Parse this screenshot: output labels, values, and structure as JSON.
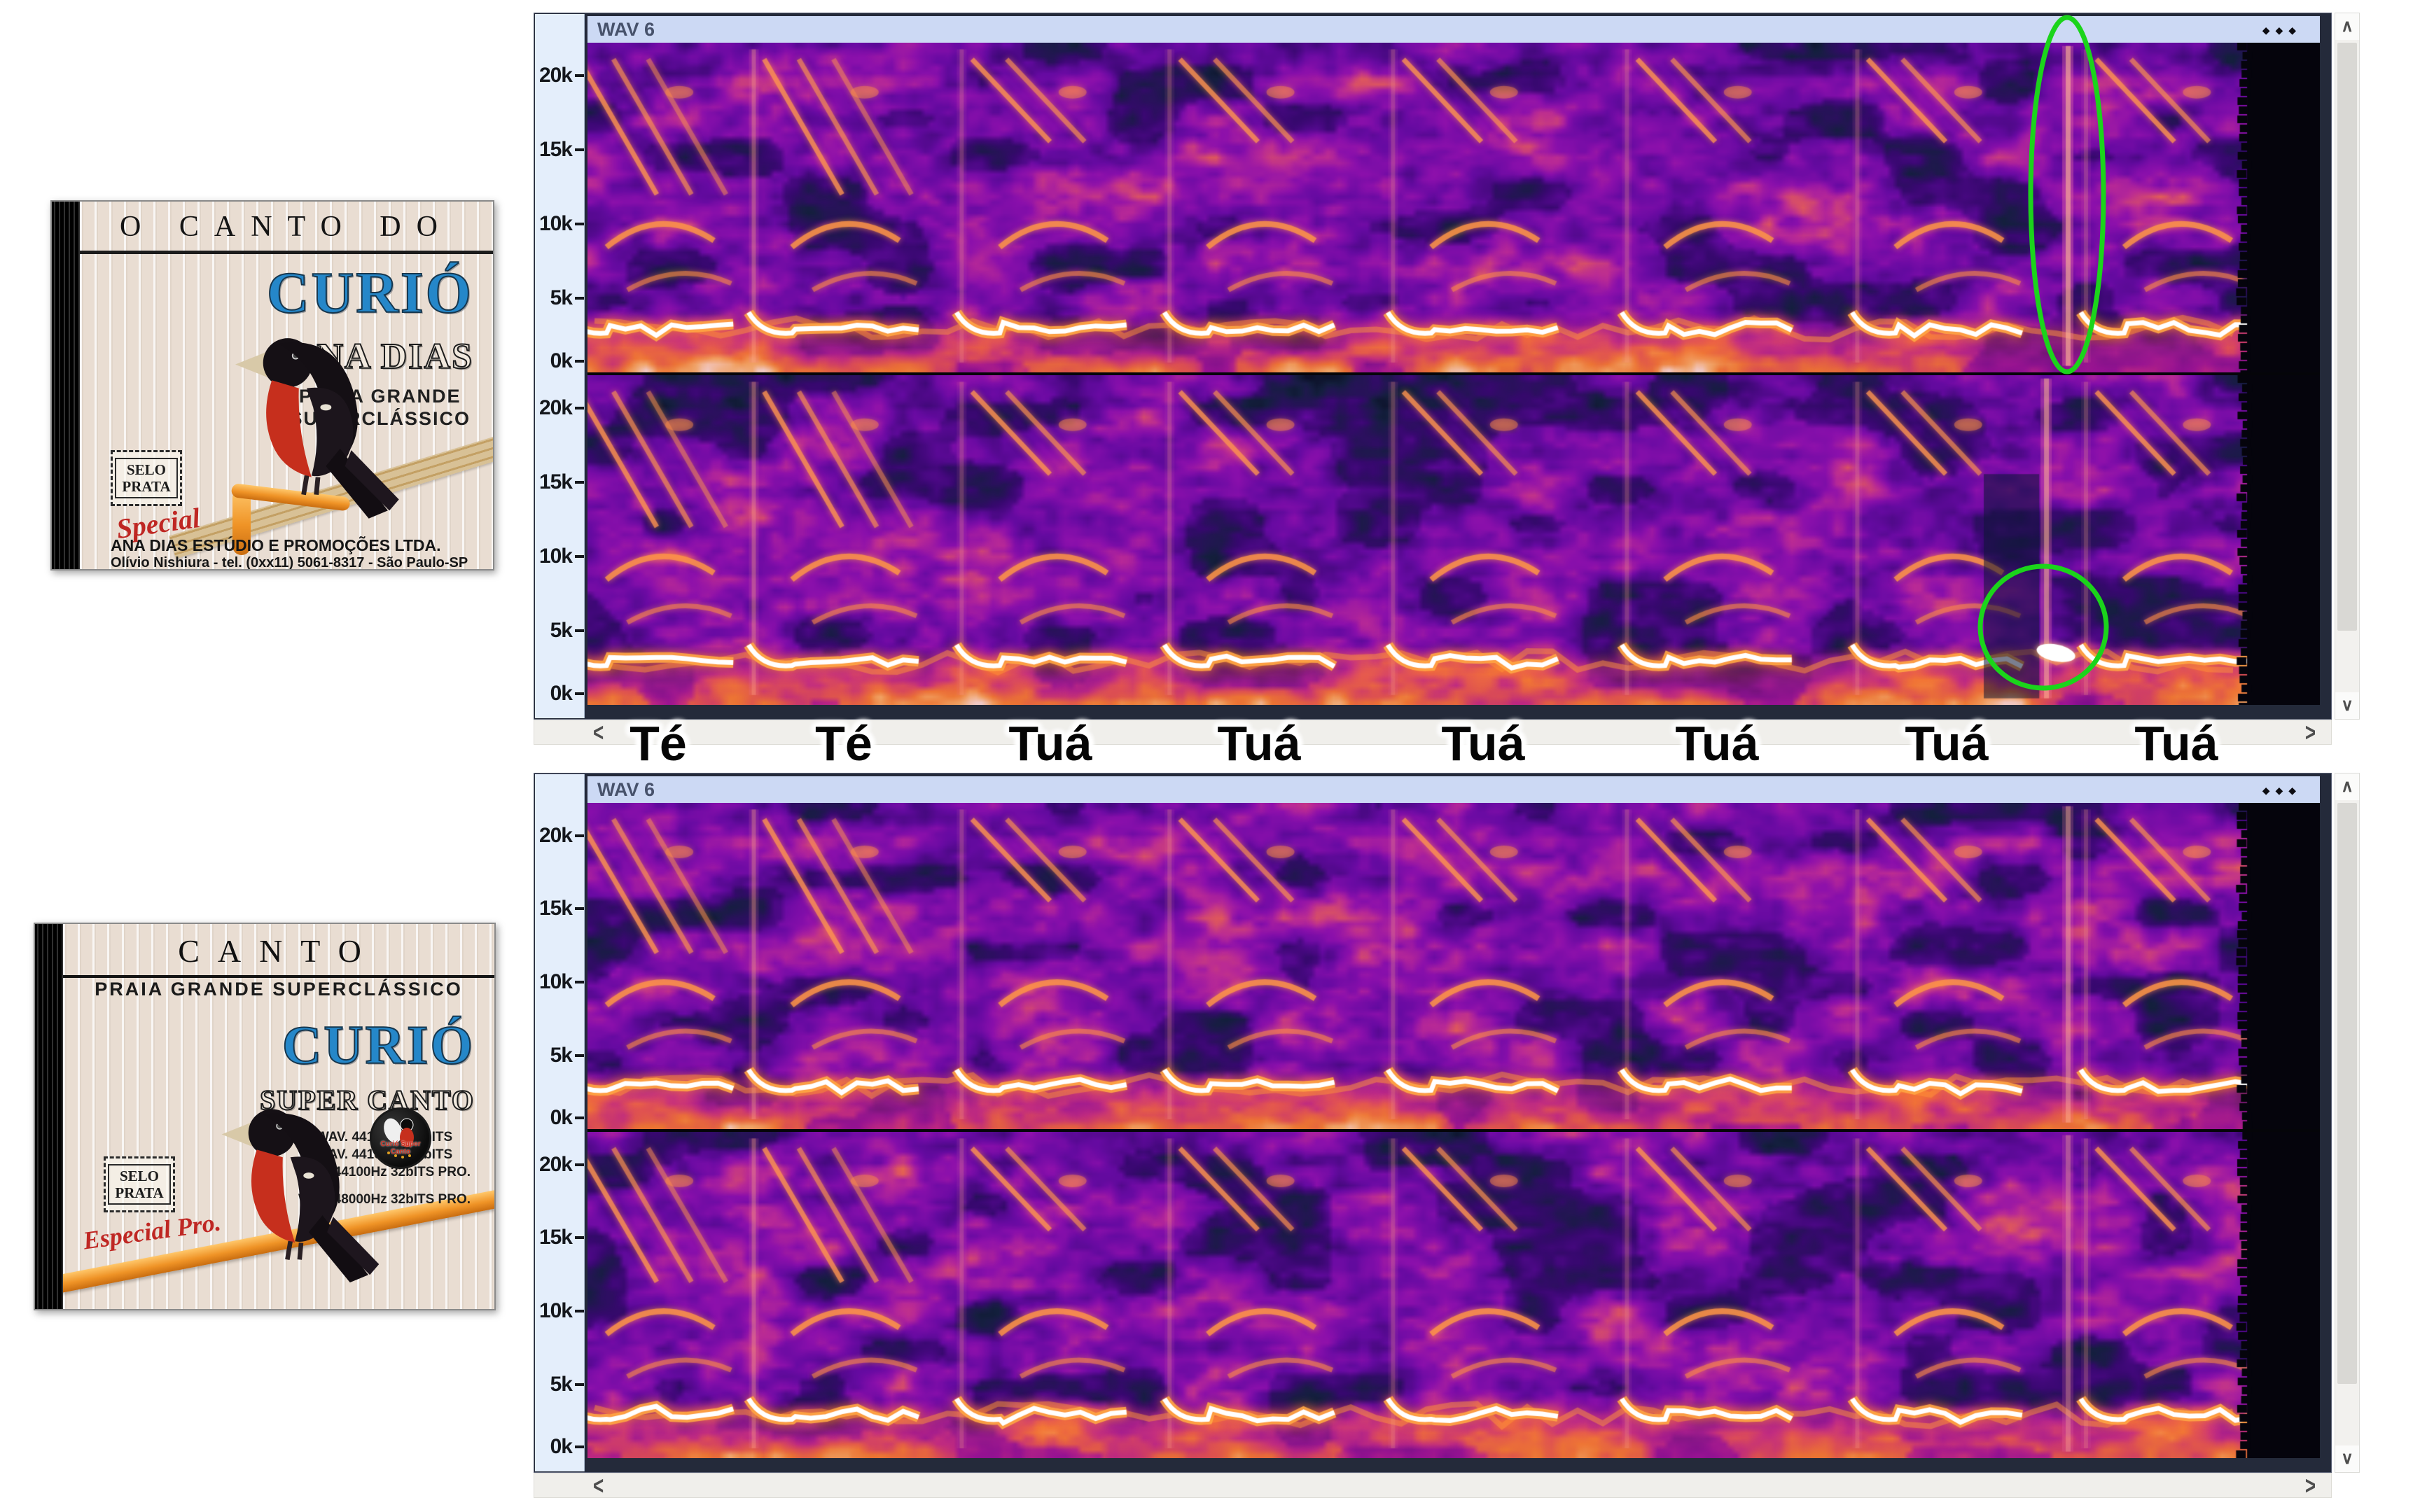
{
  "cd_top": {
    "header": "O CANTO DO",
    "title": "CURIÓ",
    "artist": "ANA DIAS",
    "tagline": [
      "PRAIA GRANDE",
      "SUPERCLÁSSICO"
    ],
    "stamp": [
      "SELO",
      "PRATA"
    ],
    "stamp_script": "Special",
    "footer": [
      "ANA DIAS ESTÚDIO E PROMOÇÕES LTDA.",
      "Olívio Nishiura - tel. (0xx11) 5061-8317 - São Paulo-SP"
    ]
  },
  "cd_bottom": {
    "header": "CANTO",
    "subheader": "PRAIA  GRANDE SUPERCLÁSSICO",
    "title": "CURIÓ",
    "subtitle": "SUPER CANTO",
    "specs": [
      "WAV. 44100Hz 16bITS",
      "WAV. 44100Hz 24bITS",
      "WAV. 44100Hz 32bITS PRO.",
      "WAV. 48000Hz 32bITS PRO."
    ],
    "stamp": [
      "SELO",
      "PRATA"
    ],
    "stamp_script": "Especial Pro.",
    "logo_text": "Curió Super Canto"
  },
  "panels": {
    "track_title": "WAV 6",
    "ruler_ticks": [
      "20k",
      "15k",
      "10k",
      "5k",
      "0k"
    ],
    "icons": {
      "menu": "◆◆◆",
      "scroll_up": "∧",
      "scroll_down": "∨",
      "scroll_left": "<",
      "scroll_right": ">"
    }
  },
  "annotations": {
    "syllables": [
      "Té",
      "Té",
      "Tuá",
      "Tuá",
      "Tuá",
      "Tuá",
      "Tuá",
      "Tuá"
    ],
    "highlight_color": "#1bd41b"
  },
  "colors": {
    "curio_blue": "#2587c9",
    "titlebar_bg": "#ccd9f4",
    "ruler_bg": "#e4eefb",
    "spectro_purple": "#7a10a8",
    "spectro_hot": "#ff8c2e",
    "annotation_green": "#1bd41b"
  }
}
